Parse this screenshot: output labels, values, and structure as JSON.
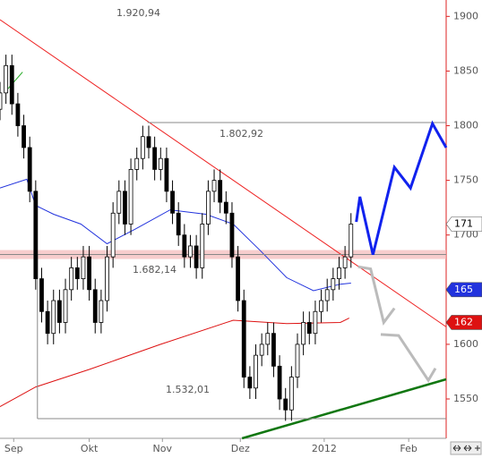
{
  "chart_data": {
    "type": "candlestick",
    "xlim": [
      0,
      75
    ],
    "ylim": [
      1514,
      1915
    ],
    "yticks": [
      1550,
      1600,
      1650,
      1700,
      1750,
      1800,
      1850,
      1900
    ],
    "xticks": [
      {
        "value": 2.3,
        "label": "Sep"
      },
      {
        "value": 15,
        "label": "Okt"
      },
      {
        "value": 27.3,
        "label": "Nov"
      },
      {
        "value": 40.4,
        "label": "Dez"
      },
      {
        "value": 54.5,
        "label": "2012"
      },
      {
        "value": 68.7,
        "label": "Feb"
      }
    ],
    "x": [
      0,
      1,
      2,
      3,
      4,
      5,
      6,
      7,
      8,
      9,
      10,
      11,
      12,
      13,
      14,
      15,
      16,
      17,
      18,
      19,
      20,
      21,
      22,
      23,
      24,
      25,
      26,
      27,
      28,
      29,
      30,
      31,
      32,
      33,
      34,
      35,
      36,
      37,
      38,
      39,
      40,
      41,
      42,
      43,
      44,
      45,
      46,
      47,
      48,
      49,
      50,
      51,
      52,
      53,
      54,
      55,
      56,
      57,
      58,
      59
    ],
    "open": [
      1815,
      1830,
      1855,
      1820,
      1800,
      1780,
      1740,
      1660,
      1630,
      1610,
      1640,
      1620,
      1650,
      1670,
      1660,
      1680,
      1650,
      1620,
      1640,
      1680,
      1720,
      1740,
      1710,
      1760,
      1770,
      1790,
      1780,
      1760,
      1770,
      1740,
      1720,
      1700,
      1680,
      1690,
      1670,
      1710,
      1740,
      1750,
      1730,
      1720,
      1680,
      1640,
      1570,
      1560,
      1590,
      1600,
      1610,
      1580,
      1550,
      1540,
      1570,
      1600,
      1620,
      1610,
      1630,
      1640,
      1650,
      1660,
      1670,
      1680
    ],
    "high": [
      1840,
      1865,
      1865,
      1830,
      1810,
      1790,
      1750,
      1670,
      1640,
      1650,
      1650,
      1660,
      1680,
      1680,
      1690,
      1690,
      1660,
      1650,
      1690,
      1730,
      1750,
      1750,
      1770,
      1780,
      1800,
      1800,
      1790,
      1780,
      1780,
      1750,
      1730,
      1710,
      1700,
      1700,
      1720,
      1750,
      1760,
      1760,
      1740,
      1730,
      1690,
      1650,
      1580,
      1600,
      1610,
      1620,
      1620,
      1590,
      1560,
      1580,
      1610,
      1630,
      1630,
      1640,
      1650,
      1660,
      1670,
      1680,
      1690,
      1720
    ],
    "low": [
      1805,
      1820,
      1810,
      1790,
      1770,
      1730,
      1650,
      1620,
      1600,
      1600,
      1610,
      1610,
      1640,
      1650,
      1650,
      1640,
      1610,
      1610,
      1630,
      1670,
      1710,
      1700,
      1700,
      1750,
      1760,
      1770,
      1750,
      1750,
      1730,
      1710,
      1690,
      1670,
      1670,
      1660,
      1660,
      1700,
      1730,
      1720,
      1710,
      1670,
      1630,
      1560,
      1550,
      1550,
      1580,
      1590,
      1570,
      1540,
      1530,
      1530,
      1560,
      1590,
      1600,
      1600,
      1620,
      1630,
      1640,
      1650,
      1660,
      1670
    ],
    "close": [
      1830,
      1855,
      1820,
      1800,
      1780,
      1740,
      1660,
      1630,
      1610,
      1640,
      1620,
      1650,
      1670,
      1660,
      1680,
      1650,
      1620,
      1640,
      1680,
      1720,
      1740,
      1710,
      1760,
      1770,
      1790,
      1780,
      1760,
      1770,
      1740,
      1720,
      1700,
      1680,
      1690,
      1670,
      1710,
      1740,
      1750,
      1730,
      1720,
      1680,
      1640,
      1570,
      1560,
      1590,
      1600,
      1610,
      1580,
      1550,
      1540,
      1570,
      1600,
      1620,
      1610,
      1630,
      1640,
      1650,
      1660,
      1670,
      1680,
      1710
    ],
    "overlays": [
      {
        "color": "#2233dd",
        "width": 1,
        "x": [
          0,
          4.5,
          6,
          9,
          13.6,
          18,
          22.6,
          28.6,
          34.6,
          39.2,
          43.7,
          48.2,
          52.7,
          57.2,
          59
        ],
        "values": [
          1743,
          1751,
          1727,
          1719,
          1710,
          1692,
          1705,
          1723,
          1719,
          1710,
          1686,
          1661,
          1649,
          1655,
          1656
        ]
      },
      {
        "color": "#dd1111",
        "width": 1,
        "x": [
          0,
          6,
          15,
          27,
          39.2,
          48.2,
          57.2,
          58.7
        ],
        "values": [
          1543,
          1561,
          1577,
          1600,
          1622,
          1619,
          1620,
          1624
        ]
      },
      {
        "color": "#ee2222",
        "width": 1,
        "x": [
          0,
          75
        ],
        "values": [
          1897,
          1616
        ]
      },
      {
        "color": "#117711",
        "width": 2.5,
        "x": [
          40.7,
          75
        ],
        "values": [
          1514,
          1568
        ]
      },
      {
        "color": "#22aa22",
        "width": 1,
        "x": [
          1.2,
          3.8
        ],
        "values": [
          1833,
          1849
        ]
      },
      {
        "color": "#888888",
        "width": 1,
        "x": [
          24.8,
          75
        ],
        "values": [
          1802.92,
          1802.92
        ]
      },
      {
        "color": "#888888",
        "width": 1,
        "x": [
          6.3,
          75
        ],
        "values": [
          1532.01,
          1532.01
        ]
      },
      {
        "color": "#888888",
        "width": 1,
        "x": [
          6.3,
          6.3
        ],
        "values": [
          1682.14,
          1532.01
        ]
      },
      {
        "color": "#888888",
        "width": 1,
        "x": [
          0,
          75
        ],
        "values": [
          1682.14,
          1682.14
        ]
      },
      {
        "color": "#1122ee",
        "width": 3,
        "x": [
          59.9,
          60.5,
          62.7,
          66.3,
          69,
          72.7,
          75
        ],
        "values": [
          1712,
          1735,
          1682,
          1762,
          1743,
          1802,
          1780
        ]
      },
      {
        "color": "#bbbbbb",
        "width": 3,
        "x": [
          60.2,
          62.3,
          64.5,
          66.3
        ],
        "values": [
          1671,
          1669,
          1620,
          1633
        ]
      },
      {
        "color": "#bbbbbb",
        "width": 3,
        "x": [
          64,
          67,
          72,
          73.2
        ],
        "values": [
          1609,
          1608,
          1567,
          1578
        ]
      }
    ],
    "band": 1682.14,
    "annotations": [
      "1.920,94",
      "1.802,92",
      "1.682,14",
      "1.532,01"
    ],
    "price_tags": [
      {
        "value": 1710,
        "label": "171",
        "bg": "#ffffff",
        "fg": "#000000"
      },
      {
        "value": 1650,
        "label": "165",
        "bg": "#2233dd",
        "fg": "#ffffff"
      },
      {
        "value": 1620,
        "label": "162",
        "bg": "#dd1111",
        "fg": "#ffffff"
      }
    ]
  }
}
